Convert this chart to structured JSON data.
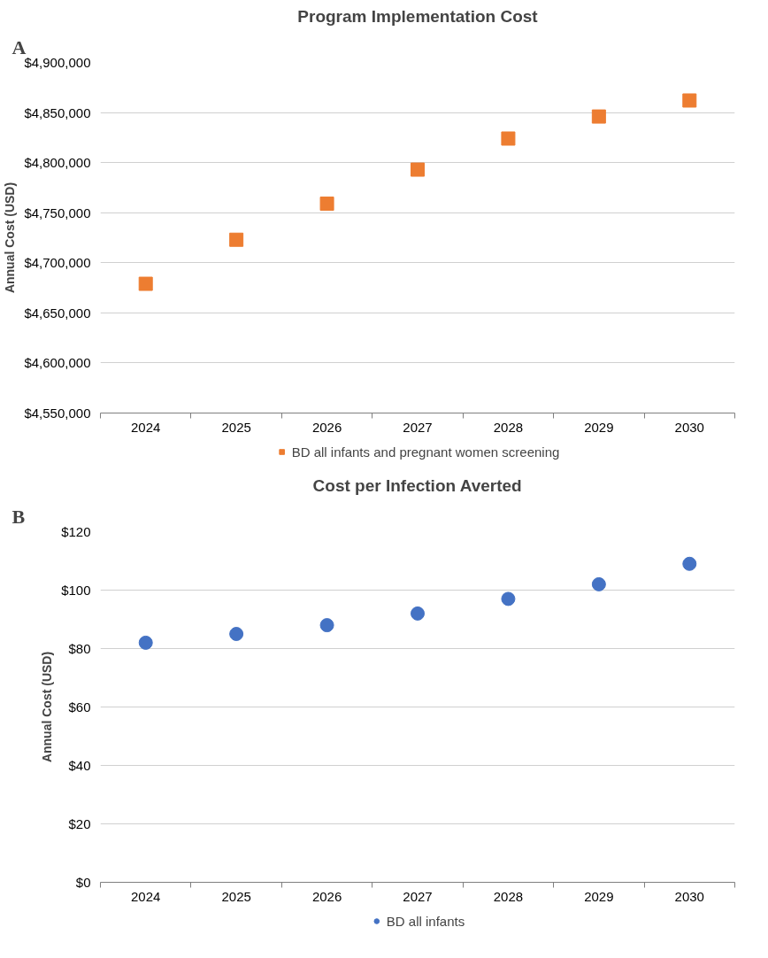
{
  "chart_data": [
    {
      "type": "scatter",
      "title": "Program Implementation Cost",
      "ylabel": "Annual Cost (USD)",
      "annotations": [
        "A"
      ],
      "categories": [
        "2024",
        "2025",
        "2026",
        "2027",
        "2028",
        "2029",
        "2030"
      ],
      "series": [
        {
          "name": "BD all infants and pregnant women screening",
          "color": "#ed7d31",
          "values": [
            4679000,
            4723000,
            4759000,
            4793000,
            4824000,
            4846000,
            4862000
          ]
        }
      ],
      "ylim": [
        4550000,
        4900000
      ],
      "yticks": [
        {
          "value": 4550000,
          "label": "$4,550,000"
        },
        {
          "value": 4600000,
          "label": "$4,600,000"
        },
        {
          "value": 4650000,
          "label": "$4,650,000"
        },
        {
          "value": 4700000,
          "label": "$4,700,000"
        },
        {
          "value": 4750000,
          "label": "$4,750,000"
        },
        {
          "value": 4800000,
          "label": "$4,800,000"
        },
        {
          "value": 4850000,
          "label": "$4,850,000"
        },
        {
          "value": 4900000,
          "label": "$4,900,000"
        }
      ],
      "grid": "y",
      "legend": "bottom",
      "marker": "square"
    },
    {
      "type": "scatter",
      "title": "Cost per Infection Averted",
      "ylabel": "Annual Cost (USD)",
      "annotations": [
        "B"
      ],
      "categories": [
        "2024",
        "2025",
        "2026",
        "2027",
        "2028",
        "2029",
        "2030"
      ],
      "series": [
        {
          "name": "BD all infants",
          "color": "#4472c4",
          "values": [
            82,
            85,
            88,
            92,
            97,
            102,
            109
          ]
        }
      ],
      "ylim": [
        0,
        120
      ],
      "yticks": [
        {
          "value": 0,
          "label": "$0"
        },
        {
          "value": 20,
          "label": "$20"
        },
        {
          "value": 40,
          "label": "$40"
        },
        {
          "value": 60,
          "label": "$60"
        },
        {
          "value": 80,
          "label": "$80"
        },
        {
          "value": 100,
          "label": "$100"
        },
        {
          "value": 120,
          "label": "$120"
        }
      ],
      "grid": "y",
      "legend": "bottom",
      "marker": "circle"
    }
  ]
}
